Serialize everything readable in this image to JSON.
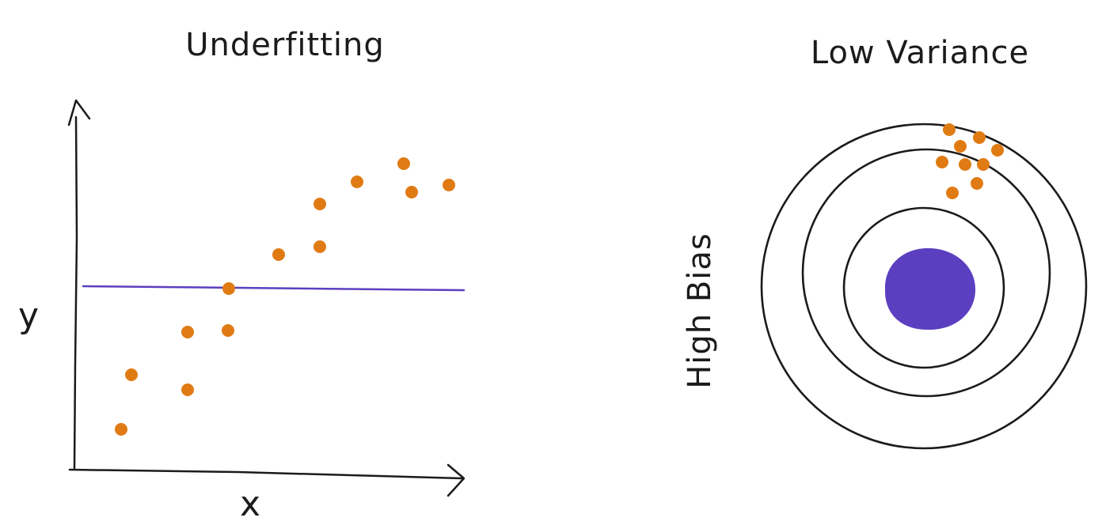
{
  "left_panel": {
    "title": "Underfitting",
    "x_axis_label": "x",
    "y_axis_label": "y",
    "fit_line_color": "#5b3fc0",
    "point_color": "#e07b14",
    "points": [
      [
        153,
        543
      ],
      [
        166,
        474
      ],
      [
        237,
        493
      ],
      [
        237,
        420
      ],
      [
        288,
        418
      ],
      [
        289,
        365
      ],
      [
        352,
        322
      ],
      [
        404,
        258
      ],
      [
        404,
        312
      ],
      [
        451,
        230
      ],
      [
        510,
        207
      ],
      [
        520,
        243
      ],
      [
        567,
        234
      ]
    ]
  },
  "right_panel": {
    "top_label": "Low Variance",
    "side_label": "High Bias",
    "center_color": "#5b3fc0",
    "point_color": "#e07b14",
    "ring_color": "#1b1b1b",
    "points": [
      [
        1199,
        164
      ],
      [
        1237,
        174
      ],
      [
        1213,
        185
      ],
      [
        1260,
        190
      ],
      [
        1190,
        205
      ],
      [
        1219,
        208
      ],
      [
        1242,
        208
      ],
      [
        1234,
        232
      ],
      [
        1203,
        244
      ]
    ]
  }
}
